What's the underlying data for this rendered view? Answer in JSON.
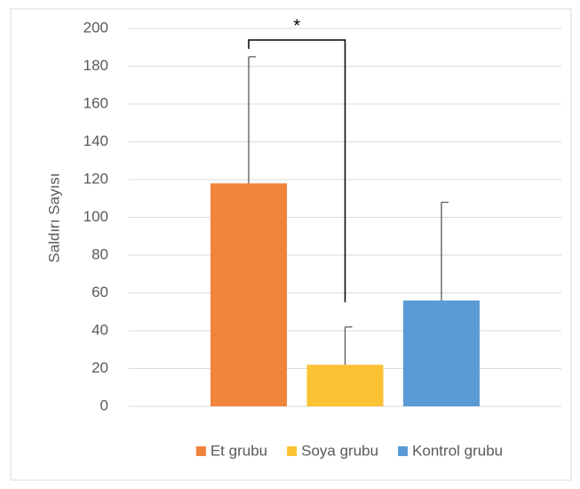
{
  "chart_data": {
    "type": "bar",
    "y_label": "Saldırı Sayısı",
    "categories": [
      null
    ],
    "series": [
      {
        "name": "Et grubu",
        "color": "#f0843c",
        "values": [
          118
        ],
        "errors": [
          67
        ]
      },
      {
        "name": "Soya grubu",
        "color": "#fbc234",
        "values": [
          22
        ],
        "errors": [
          20
        ]
      },
      {
        "name": "Kontrol grubu",
        "color": "#5a9bd5",
        "values": [
          56
        ],
        "errors": [
          52
        ]
      }
    ],
    "annotations": [
      "*"
    ],
    "ylim": [
      0,
      200
    ],
    "yticks": [
      0,
      20,
      40,
      60,
      80,
      100,
      120,
      140,
      160,
      180,
      200
    ],
    "grid": true,
    "legend": "bottom"
  }
}
